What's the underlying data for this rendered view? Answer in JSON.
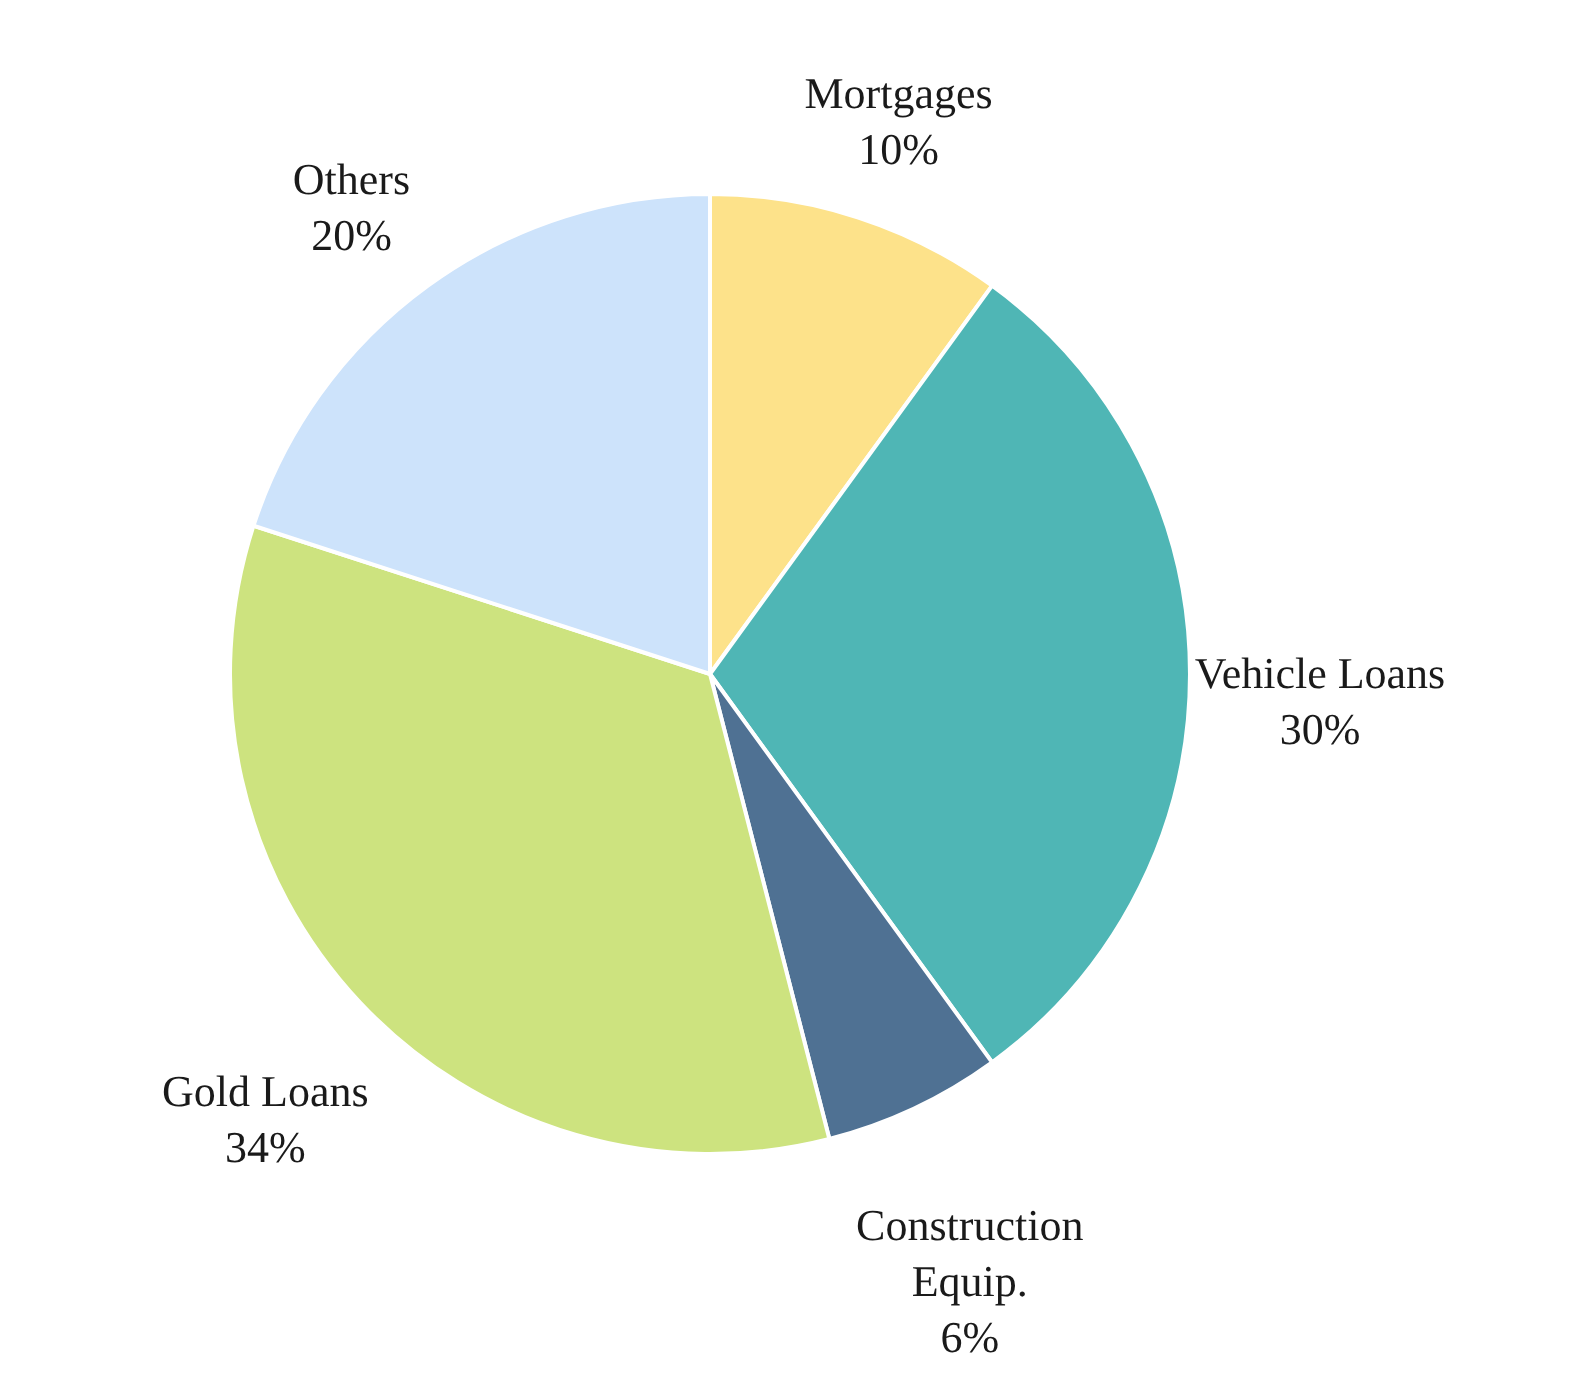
{
  "chart_data": {
    "type": "pie",
    "categories": [
      "Mortgages",
      "Vehicle Loans",
      "Construction Equip.",
      "Gold Loans",
      "Others"
    ],
    "values": [
      10,
      30,
      6,
      34,
      20
    ],
    "value_labels": [
      "10%",
      "30%",
      "6%",
      "34%",
      "20%"
    ],
    "colors": [
      "#fde28a",
      "#4fb6b5",
      "#4f7193",
      "#cde37f",
      "#cde3fb"
    ]
  }
}
